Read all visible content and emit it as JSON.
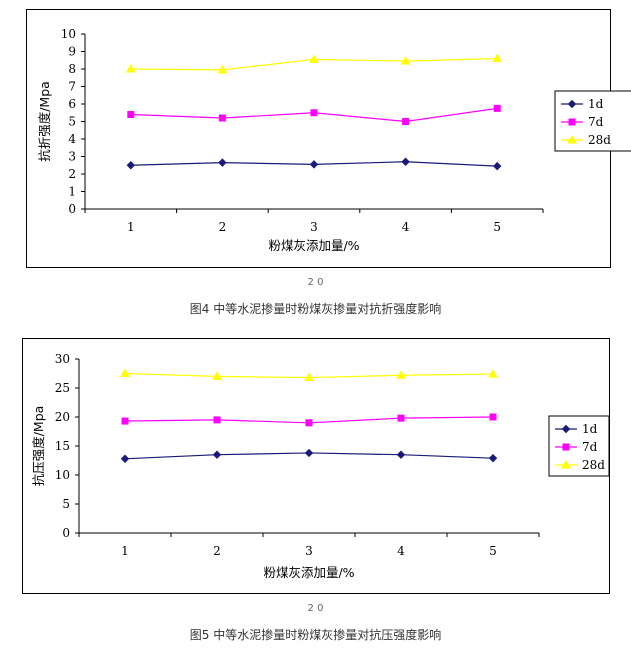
{
  "chart_data": [
    {
      "type": "line",
      "categories": [
        "1",
        "2",
        "3",
        "4",
        "5"
      ],
      "series": [
        {
          "name": "1d",
          "values": [
            2.5,
            2.65,
            2.55,
            2.7,
            2.45
          ],
          "color": "#1a1a7a",
          "marker": "diamond"
        },
        {
          "name": "7d",
          "values": [
            5.4,
            5.2,
            5.5,
            5.0,
            5.75
          ],
          "color": "#ff00ff",
          "marker": "square"
        },
        {
          "name": "28d",
          "values": [
            8.0,
            7.95,
            8.55,
            8.45,
            8.6
          ],
          "color": "#ffff00",
          "marker": "triangle"
        }
      ],
      "xlabel": "粉煤灰添加量/%",
      "ylabel": "抗折强度/Mpa",
      "ylim": [
        0,
        10
      ],
      "yticks": [
        "0",
        "1",
        "2",
        "3",
        "4",
        "5",
        "6",
        "7",
        "8",
        "9",
        "10"
      ],
      "grid": false,
      "legend_position": "right"
    },
    {
      "type": "line",
      "categories": [
        "1",
        "2",
        "3",
        "4",
        "5"
      ],
      "series": [
        {
          "name": "1d",
          "values": [
            12.8,
            13.5,
            13.8,
            13.5,
            12.9
          ],
          "color": "#1a1a7a",
          "marker": "diamond"
        },
        {
          "name": "7d",
          "values": [
            19.3,
            19.5,
            19.0,
            19.8,
            20.0
          ],
          "color": "#ff00ff",
          "marker": "square"
        },
        {
          "name": "28d",
          "values": [
            27.5,
            27.0,
            26.8,
            27.2,
            27.4
          ],
          "color": "#ffff00",
          "marker": "triangle"
        }
      ],
      "xlabel": "粉煤灰添加量/%",
      "ylabel": "抗压强度/Mpa",
      "ylim": [
        0,
        30
      ],
      "yticks": [
        "0",
        "5",
        "10",
        "15",
        "20",
        "25",
        "30"
      ],
      "grid": false,
      "legend_position": "right"
    }
  ],
  "stray_mark_1": "2 0",
  "stray_mark_2": "2 0",
  "caption_1": "图4 中等水泥掺量时粉煤灰掺量对抗折强度影响",
  "caption_2": "图5 中等水泥掺量时粉煤灰掺量对抗压强度影响"
}
